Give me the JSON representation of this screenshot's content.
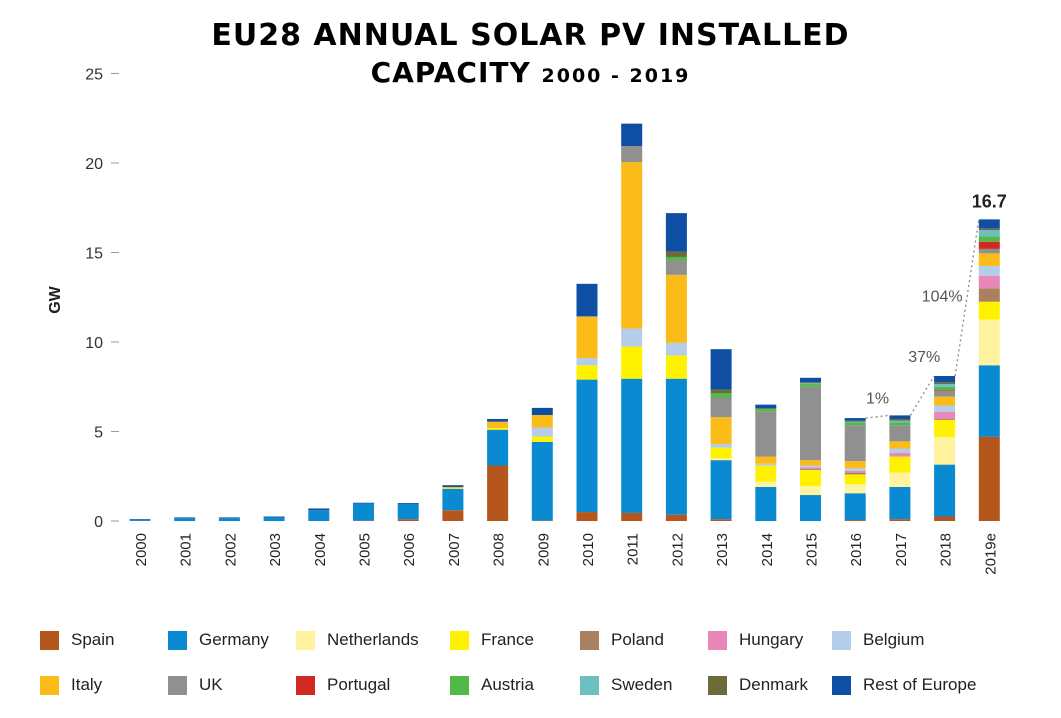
{
  "title_line1": "EU28 ANNUAL SOLAR PV INSTALLED",
  "title_line2_main": "CAPACITY",
  "title_line2_sub": "2000 - 2019",
  "chart_data": {
    "type": "bar",
    "stacked": true,
    "title": "EU28 ANNUAL SOLAR PV INSTALLED CAPACITY 2000 - 2019",
    "xlabel": "",
    "ylabel": "GW",
    "ylim": [
      0,
      25
    ],
    "yticks": [
      0,
      5,
      10,
      15,
      20,
      25
    ],
    "grid": false,
    "legend_position": "bottom",
    "categories": [
      "2000",
      "2001",
      "2002",
      "2003",
      "2004",
      "2005",
      "2006",
      "2007",
      "2008",
      "2009",
      "2010",
      "2011",
      "2012",
      "2013",
      "2014",
      "2015",
      "2016",
      "2017",
      "2018",
      "2019e"
    ],
    "series": [
      {
        "name": "Spain",
        "color": "#b5561c",
        "values": [
          0,
          0,
          0,
          0,
          0,
          0.02,
          0.1,
          0.6,
          3.1,
          0.02,
          0.5,
          0.45,
          0.35,
          0.1,
          0,
          0,
          0.05,
          0.1,
          0.25,
          4.7
        ]
      },
      {
        "name": "Germany",
        "color": "#0a8ad0",
        "values": [
          0.05,
          0.15,
          0.15,
          0.2,
          0.6,
          0.95,
          0.85,
          1.2,
          2.0,
          4.4,
          7.4,
          7.5,
          7.6,
          3.3,
          1.9,
          1.45,
          1.5,
          1.8,
          2.9,
          4.0
        ]
      },
      {
        "name": "Netherlands",
        "color": "#fff3a0",
        "values": [
          0,
          0,
          0,
          0,
          0,
          0,
          0,
          0,
          0,
          0,
          0,
          0,
          0,
          0.1,
          0.3,
          0.5,
          0.5,
          0.8,
          1.55,
          2.55
        ]
      },
      {
        "name": "France",
        "color": "#fff200",
        "values": [
          0,
          0,
          0,
          0,
          0,
          0,
          0,
          0.05,
          0.1,
          0.3,
          0.8,
          1.8,
          1.3,
          0.6,
          0.9,
          0.9,
          0.55,
          0.9,
          0.95,
          1.0
        ]
      },
      {
        "name": "Poland",
        "color": "#a98160",
        "values": [
          0,
          0,
          0,
          0,
          0,
          0,
          0,
          0,
          0,
          0,
          0,
          0,
          0,
          0,
          0,
          0.05,
          0.1,
          0,
          0.05,
          0.75
        ]
      },
      {
        "name": "Hungary",
        "color": "#e987b8",
        "values": [
          0,
          0,
          0,
          0,
          0,
          0,
          0,
          0,
          0,
          0,
          0,
          0,
          0,
          0,
          0,
          0.1,
          0.1,
          0.2,
          0.4,
          0.7
        ]
      },
      {
        "name": "Belgium",
        "color": "#b4cdea",
        "values": [
          0,
          0,
          0,
          0,
          0,
          0,
          0,
          0,
          0,
          0.5,
          0.4,
          1.0,
          0.7,
          0.2,
          0.1,
          0.1,
          0.15,
          0.25,
          0.35,
          0.55
        ]
      },
      {
        "name": "Italy",
        "color": "#fbbb18",
        "values": [
          0,
          0,
          0,
          0,
          0,
          0,
          0,
          0.05,
          0.35,
          0.7,
          2.3,
          9.3,
          3.8,
          1.5,
          0.4,
          0.3,
          0.4,
          0.4,
          0.5,
          0.7
        ]
      },
      {
        "name": "UK",
        "color": "#909090",
        "values": [
          0,
          0,
          0,
          0,
          0,
          0,
          0,
          0,
          0,
          0,
          0.05,
          0.9,
          0.8,
          1.1,
          2.5,
          4.1,
          2.0,
          0.9,
          0.3,
          0.25
        ]
      },
      {
        "name": "Portugal",
        "color": "#d02a20",
        "values": [
          0,
          0,
          0,
          0,
          0,
          0,
          0,
          0,
          0,
          0,
          0,
          0,
          0,
          0,
          0,
          0,
          0,
          0,
          0.05,
          0.4
        ]
      },
      {
        "name": "Austria",
        "color": "#52b848",
        "values": [
          0,
          0,
          0,
          0,
          0,
          0,
          0,
          0,
          0,
          0,
          0,
          0,
          0.2,
          0.25,
          0.15,
          0.15,
          0.15,
          0.15,
          0.2,
          0.3
        ]
      },
      {
        "name": "Sweden",
        "color": "#6ebfc2",
        "values": [
          0,
          0,
          0,
          0,
          0,
          0,
          0,
          0,
          0,
          0,
          0,
          0,
          0,
          0,
          0,
          0.05,
          0.05,
          0.1,
          0.15,
          0.35
        ]
      },
      {
        "name": "Denmark",
        "color": "#6e6b3a",
        "values": [
          0,
          0,
          0,
          0,
          0,
          0,
          0,
          0,
          0,
          0,
          0,
          0,
          0.3,
          0.2,
          0.05,
          0.05,
          0.05,
          0.1,
          0.1,
          0.1
        ]
      },
      {
        "name": "Rest of Europe",
        "color": "#0e4fa4",
        "values": [
          0.05,
          0.05,
          0.05,
          0.05,
          0.1,
          0.05,
          0.05,
          0.1,
          0.15,
          0.4,
          1.8,
          1.25,
          2.15,
          2.25,
          0.2,
          0.25,
          0.15,
          0.2,
          0.35,
          0.5
        ]
      }
    ],
    "annotations": [
      {
        "text": "1%"
      },
      {
        "text": "37%"
      },
      {
        "text": "104%"
      },
      {
        "text": "16.7"
      }
    ]
  }
}
